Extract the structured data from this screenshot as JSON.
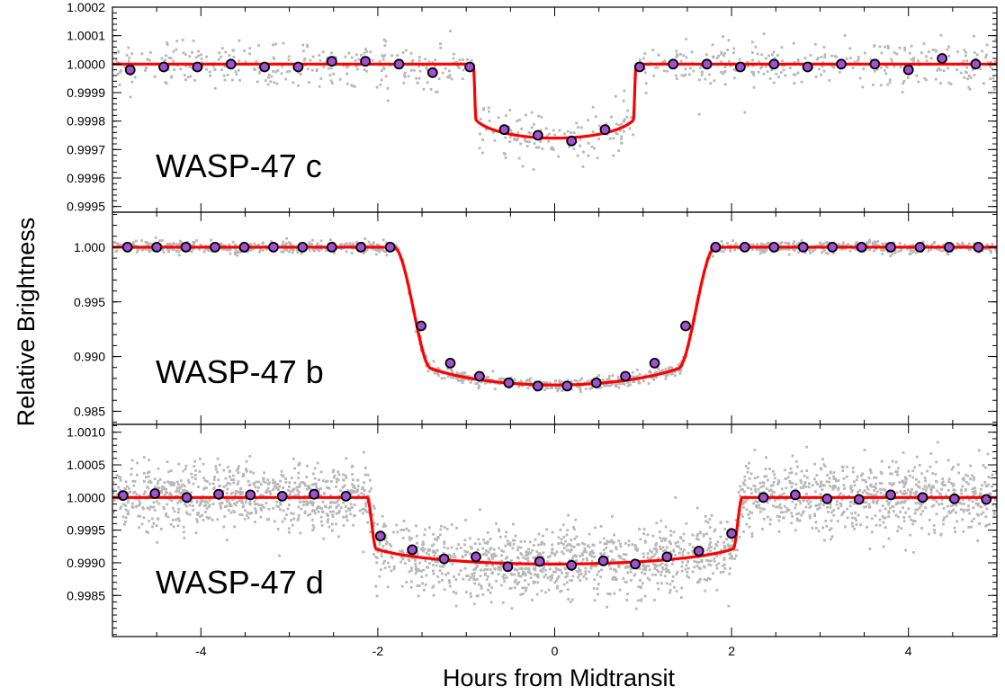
{
  "chart_data": {
    "type": "scatter",
    "xlabel": "Hours from Midtransit",
    "ylabel": "Relative Brightness",
    "xlim": [
      -5,
      5
    ],
    "xticks": [
      -4,
      -2,
      0,
      2,
      4
    ],
    "xtick_labels": [
      "-4",
      "-2",
      "0",
      "2",
      "4"
    ],
    "colors": {
      "raw_points": "#b8b8b8",
      "model": "#ff0000",
      "binned_fill": "#a050d0",
      "binned_edge": "#000000"
    },
    "panels": [
      {
        "id": "c",
        "label": "WASP-47 c",
        "ylim": [
          0.99948,
          1.0002
        ],
        "yticks": [
          0.9995,
          0.9996,
          0.9997,
          0.9998,
          0.9999,
          1.0,
          1.0001,
          1.0002
        ],
        "ytick_labels": [
          "0.9995",
          "0.9996",
          "0.9997",
          "0.9998",
          "0.9999",
          "1.0000",
          "1.0001",
          "1.0002"
        ],
        "model": {
          "t0": 0.92,
          "t_ingress": 0.03,
          "depth": 0.00026,
          "limb": 0.33
        },
        "raw_points": {
          "count": 760,
          "scatter_sigma": 4.2e-05
        },
        "binned": [
          {
            "x": -4.8,
            "y": 0.99998
          },
          {
            "x": -4.42,
            "y": 0.99999
          },
          {
            "x": -4.04,
            "y": 0.99999
          },
          {
            "x": -3.66,
            "y": 1.0
          },
          {
            "x": -3.28,
            "y": 0.99999
          },
          {
            "x": -2.9,
            "y": 0.99999
          },
          {
            "x": -2.52,
            "y": 1.00001
          },
          {
            "x": -2.14,
            "y": 1.00001
          },
          {
            "x": -1.76,
            "y": 1.0
          },
          {
            "x": -1.38,
            "y": 0.99997
          },
          {
            "x": -0.96,
            "y": 0.99999
          },
          {
            "x": -0.57,
            "y": 0.99977
          },
          {
            "x": -0.19,
            "y": 0.99975
          },
          {
            "x": 0.19,
            "y": 0.99973
          },
          {
            "x": 0.57,
            "y": 0.99977
          },
          {
            "x": 0.96,
            "y": 0.99999
          },
          {
            "x": 1.34,
            "y": 1.0
          },
          {
            "x": 1.72,
            "y": 1.0
          },
          {
            "x": 2.1,
            "y": 0.99999
          },
          {
            "x": 2.48,
            "y": 1.0
          },
          {
            "x": 2.86,
            "y": 0.99999
          },
          {
            "x": 3.24,
            "y": 1.0
          },
          {
            "x": 3.62,
            "y": 1.0
          },
          {
            "x": 4.0,
            "y": 0.99998
          },
          {
            "x": 4.38,
            "y": 1.00002
          },
          {
            "x": 4.76,
            "y": 1.0
          }
        ]
      },
      {
        "id": "b",
        "label": "WASP-47 b",
        "ylim": [
          0.9838,
          1.0032
        ],
        "yticks": [
          0.985,
          0.99,
          0.995,
          1.0
        ],
        "ytick_labels": [
          "0.985",
          "0.990",
          "0.995",
          "1.000"
        ],
        "model": {
          "t0": 1.82,
          "t_ingress": 0.42,
          "depth": 0.0126,
          "limb": 0.33
        },
        "raw_points": {
          "count": 1500,
          "scatter_sigma": 0.00025
        },
        "binned": [
          {
            "x": -4.83,
            "y": 1.0
          },
          {
            "x": -4.5,
            "y": 1.0
          },
          {
            "x": -4.17,
            "y": 1.0
          },
          {
            "x": -3.84,
            "y": 1.0
          },
          {
            "x": -3.51,
            "y": 1.0
          },
          {
            "x": -3.18,
            "y": 1.0
          },
          {
            "x": -2.85,
            "y": 1.0
          },
          {
            "x": -2.52,
            "y": 1.0
          },
          {
            "x": -2.19,
            "y": 1.0
          },
          {
            "x": -1.86,
            "y": 1.0
          },
          {
            "x": -1.51,
            "y": 0.9928
          },
          {
            "x": -1.18,
            "y": 0.9894
          },
          {
            "x": -0.85,
            "y": 0.9882
          },
          {
            "x": -0.52,
            "y": 0.9876
          },
          {
            "x": -0.19,
            "y": 0.9873
          },
          {
            "x": 0.14,
            "y": 0.9873
          },
          {
            "x": 0.47,
            "y": 0.9876
          },
          {
            "x": 0.8,
            "y": 0.9882
          },
          {
            "x": 1.13,
            "y": 0.9894
          },
          {
            "x": 1.48,
            "y": 0.9928
          },
          {
            "x": 1.82,
            "y": 1.0
          },
          {
            "x": 2.15,
            "y": 1.0
          },
          {
            "x": 2.48,
            "y": 1.0
          },
          {
            "x": 2.81,
            "y": 1.0
          },
          {
            "x": 3.14,
            "y": 1.0
          },
          {
            "x": 3.47,
            "y": 1.0
          },
          {
            "x": 3.8,
            "y": 1.0
          },
          {
            "x": 4.13,
            "y": 1.0
          },
          {
            "x": 4.46,
            "y": 1.0
          },
          {
            "x": 4.79,
            "y": 1.0
          }
        ]
      },
      {
        "id": "d",
        "label": "WASP-47 d",
        "ylim": [
          0.99787,
          1.00112
        ],
        "yticks": [
          0.9985,
          0.999,
          0.9995,
          1.0,
          1.0005,
          1.001
        ],
        "ytick_labels": [
          "0.9985",
          "0.9990",
          "0.9995",
          "1.0000",
          "1.0005",
          "1.0010"
        ],
        "model": {
          "t0": 2.12,
          "t_ingress": 0.1,
          "depth": 0.00102,
          "limb": 0.33
        },
        "raw_points": {
          "count": 2600,
          "scatter_sigma": 0.00026
        },
        "binned": [
          {
            "x": -4.88,
            "y": 1.00003
          },
          {
            "x": -4.52,
            "y": 1.00006
          },
          {
            "x": -4.16,
            "y": 1.0
          },
          {
            "x": -3.8,
            "y": 1.00005
          },
          {
            "x": -3.44,
            "y": 1.00004
          },
          {
            "x": -3.08,
            "y": 1.00002
          },
          {
            "x": -2.72,
            "y": 1.00005
          },
          {
            "x": -2.36,
            "y": 1.00002
          },
          {
            "x": -1.97,
            "y": 0.99941
          },
          {
            "x": -1.61,
            "y": 0.9992
          },
          {
            "x": -1.25,
            "y": 0.99906
          },
          {
            "x": -0.89,
            "y": 0.99909
          },
          {
            "x": -0.53,
            "y": 0.99894
          },
          {
            "x": -0.17,
            "y": 0.99902
          },
          {
            "x": 0.19,
            "y": 0.99896
          },
          {
            "x": 0.55,
            "y": 0.99903
          },
          {
            "x": 0.91,
            "y": 0.99898
          },
          {
            "x": 1.27,
            "y": 0.99909
          },
          {
            "x": 1.63,
            "y": 0.99918
          },
          {
            "x": 2.0,
            "y": 0.99945
          },
          {
            "x": 2.36,
            "y": 1.0
          },
          {
            "x": 2.72,
            "y": 1.00004
          },
          {
            "x": 3.08,
            "y": 0.99998
          },
          {
            "x": 3.44,
            "y": 0.99997
          },
          {
            "x": 3.8,
            "y": 1.00004
          },
          {
            "x": 4.16,
            "y": 1.0
          },
          {
            "x": 4.52,
            "y": 0.99998
          },
          {
            "x": 4.88,
            "y": 0.99997
          }
        ]
      }
    ]
  }
}
